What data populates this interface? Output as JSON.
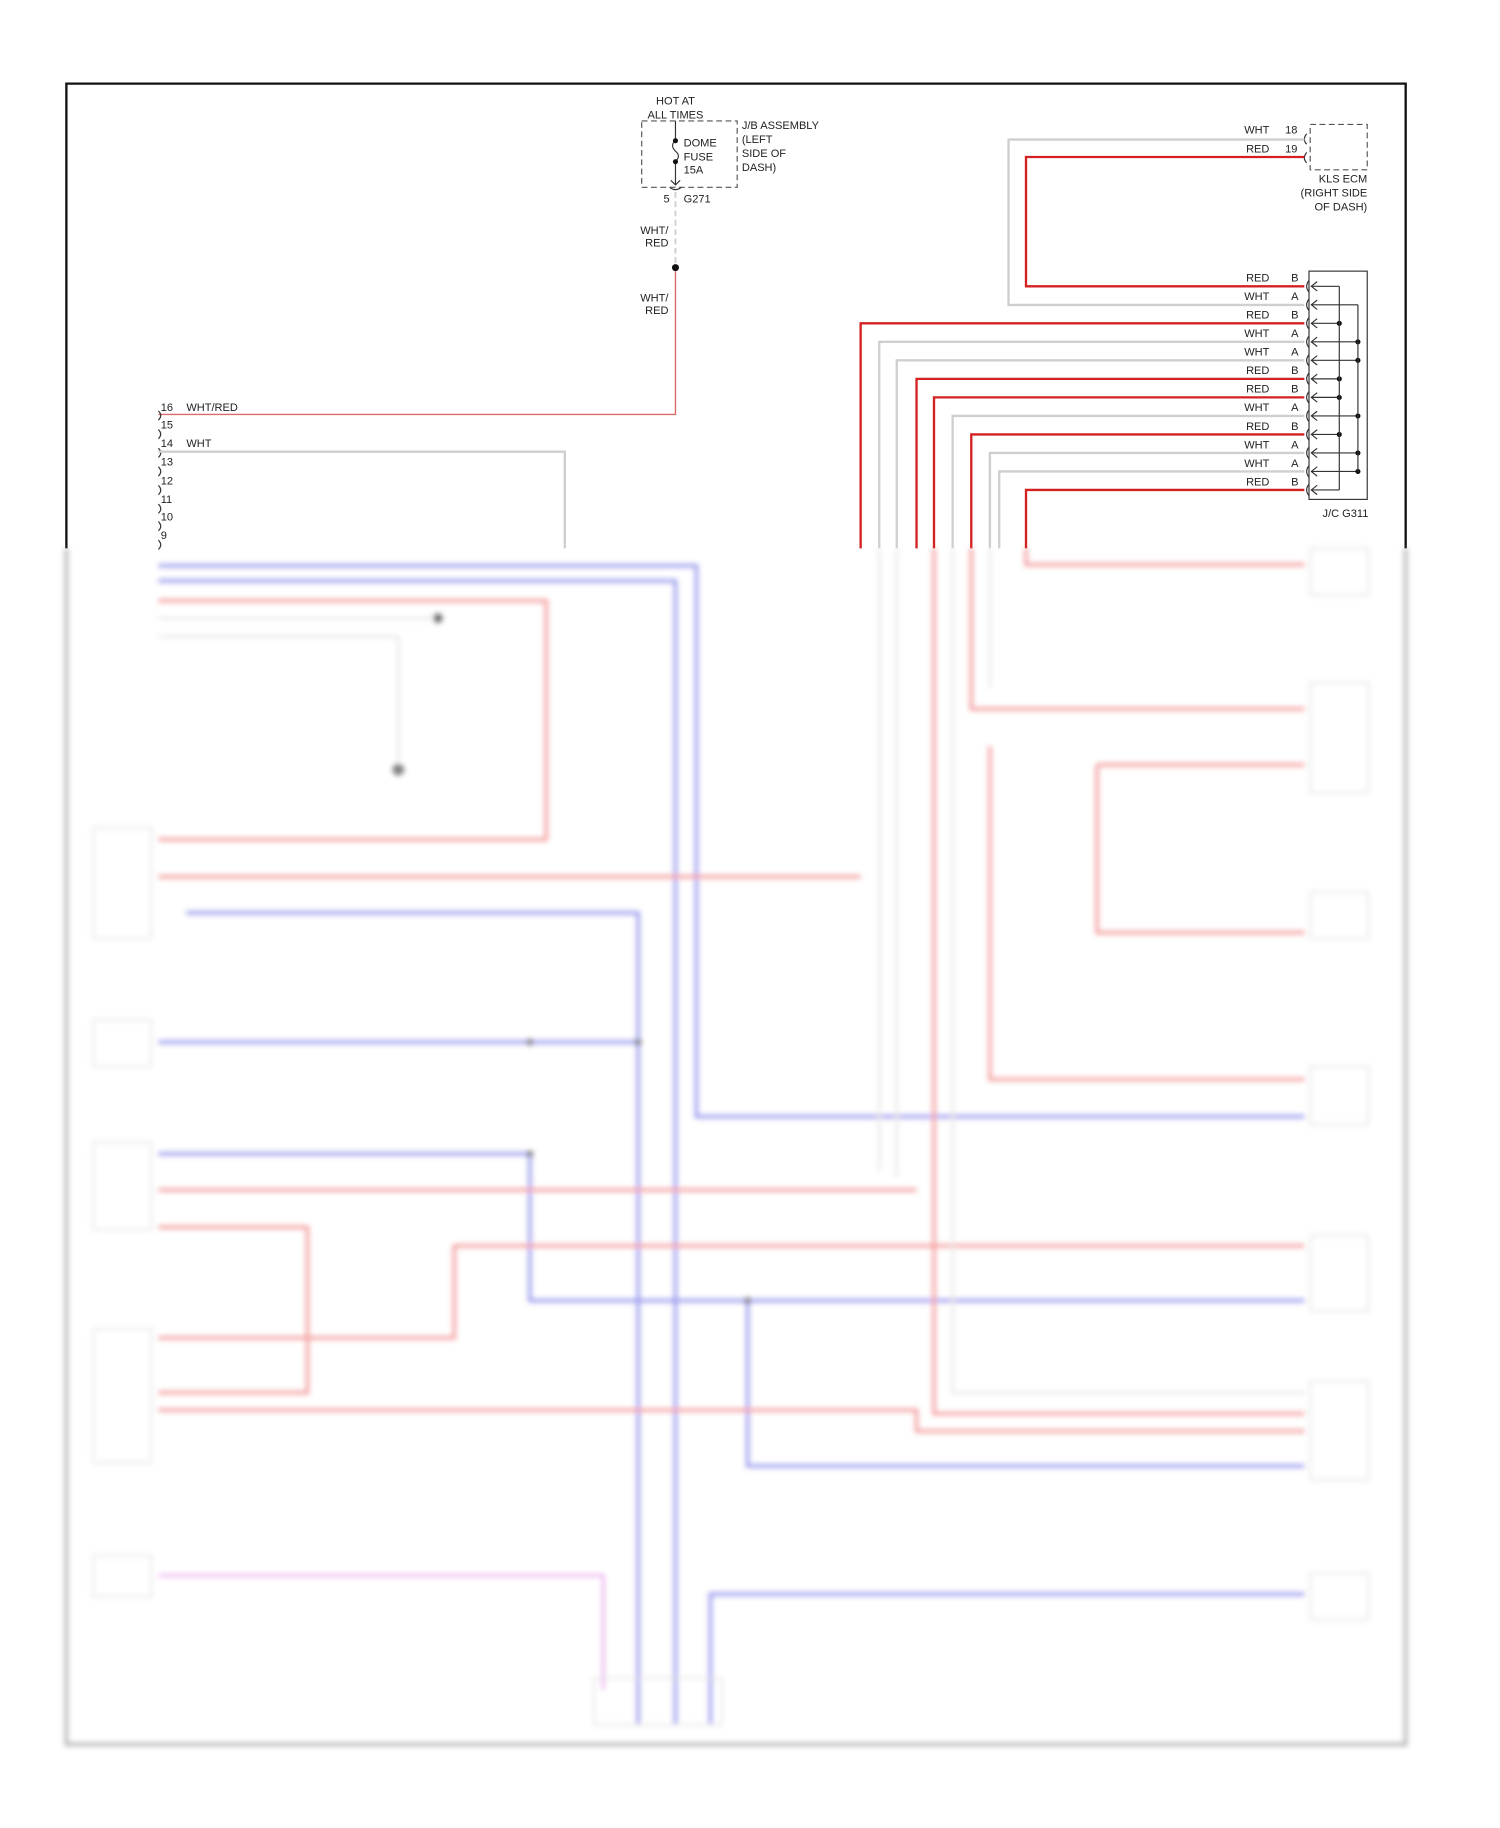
{
  "power": {
    "line1": "HOT AT",
    "line2": "ALL TIMES"
  },
  "fuse": {
    "name1": "DOME",
    "name2": "FUSE",
    "rating": "15A"
  },
  "jb": {
    "line1": "J/B ASSEMBLY",
    "line2": "(LEFT",
    "line3": "SIDE OF",
    "line4": "DASH)",
    "pin": "5",
    "connector": "G271"
  },
  "splice_wire_labels": [
    {
      "a": "WHT/",
      "b": "RED"
    },
    {
      "a": "WHT/",
      "b": "RED"
    }
  ],
  "left_connector": {
    "pins": [
      "16",
      "15",
      "14",
      "13",
      "12",
      "11",
      "10",
      "9"
    ],
    "wire_16": "WHT/RED",
    "wire_14": "WHT"
  },
  "kls_ecm": {
    "pins": [
      {
        "wire": "WHT",
        "pin": "18"
      },
      {
        "wire": "RED",
        "pin": "19"
      }
    ],
    "line1": "KLS ECM",
    "line2": "(RIGHT SIDE",
    "line3": "OF DASH)"
  },
  "junction": {
    "name": "J/C G311",
    "rows": [
      {
        "wire": "RED",
        "pin": "B"
      },
      {
        "wire": "WHT",
        "pin": "A"
      },
      {
        "wire": "RED",
        "pin": "B"
      },
      {
        "wire": "WHT",
        "pin": "A"
      },
      {
        "wire": "WHT",
        "pin": "A"
      },
      {
        "wire": "RED",
        "pin": "B"
      },
      {
        "wire": "RED",
        "pin": "B"
      },
      {
        "wire": "WHT",
        "pin": "A"
      },
      {
        "wire": "RED",
        "pin": "B"
      },
      {
        "wire": "WHT",
        "pin": "A"
      },
      {
        "wire": "WHT",
        "pin": "A"
      },
      {
        "wire": "RED",
        "pin": "B"
      }
    ]
  },
  "colors": {
    "red": "#d42020",
    "white_wire": "#cfcfcf",
    "blue_wire": "#7a7ae8",
    "pink_wire": "#e080e0"
  }
}
